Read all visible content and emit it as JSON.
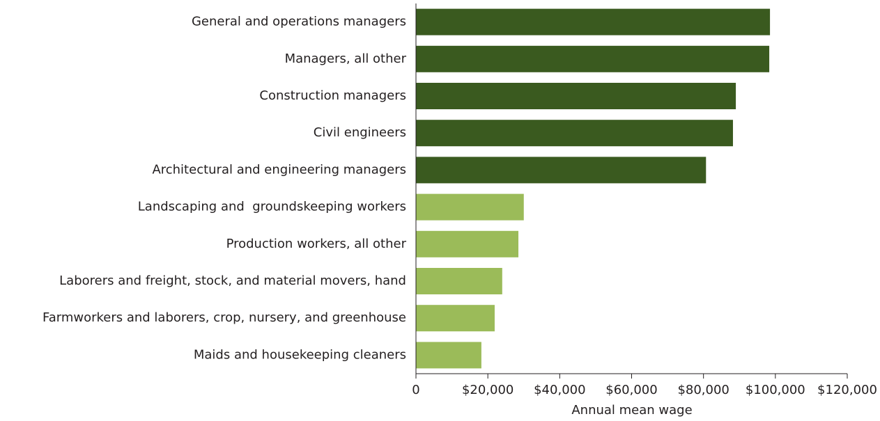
{
  "chart_data": {
    "type": "barh",
    "categories": [
      "General and operations managers",
      "Managers, all other",
      "Construction managers",
      "Civil engineers",
      "Architectural and engineering managers",
      "Landscaping and  groundskeeping workers",
      "Production workers, all other",
      "Laborers and freight, stock, and material movers, hand",
      "Farmworkers and laborers, crop, nursery, and greenhouse",
      "Maids and housekeeping cleaners"
    ],
    "values": [
      98500,
      98300,
      89000,
      88200,
      80700,
      30000,
      28500,
      24000,
      21900,
      18200
    ],
    "colors": [
      "#3a5a1f",
      "#3a5a1f",
      "#3a5a1f",
      "#3a5a1f",
      "#3a5a1f",
      "#9bbb59",
      "#9bbb59",
      "#9bbb59",
      "#9bbb59",
      "#9bbb59"
    ],
    "xlabel": "Annual mean wage",
    "xlim": [
      0,
      120000
    ],
    "xticks": [
      0,
      {
        "value": 20000,
        "label": "$20,000"
      },
      {
        "value": 40000,
        "label": "$40,000"
      },
      {
        "value": 60000,
        "label": "$60,000"
      },
      {
        "value": 80000,
        "label": "$80,000"
      },
      {
        "value": 100000,
        "label": "$100,000"
      },
      {
        "value": 120000,
        "label": "$120,000"
      }
    ]
  }
}
